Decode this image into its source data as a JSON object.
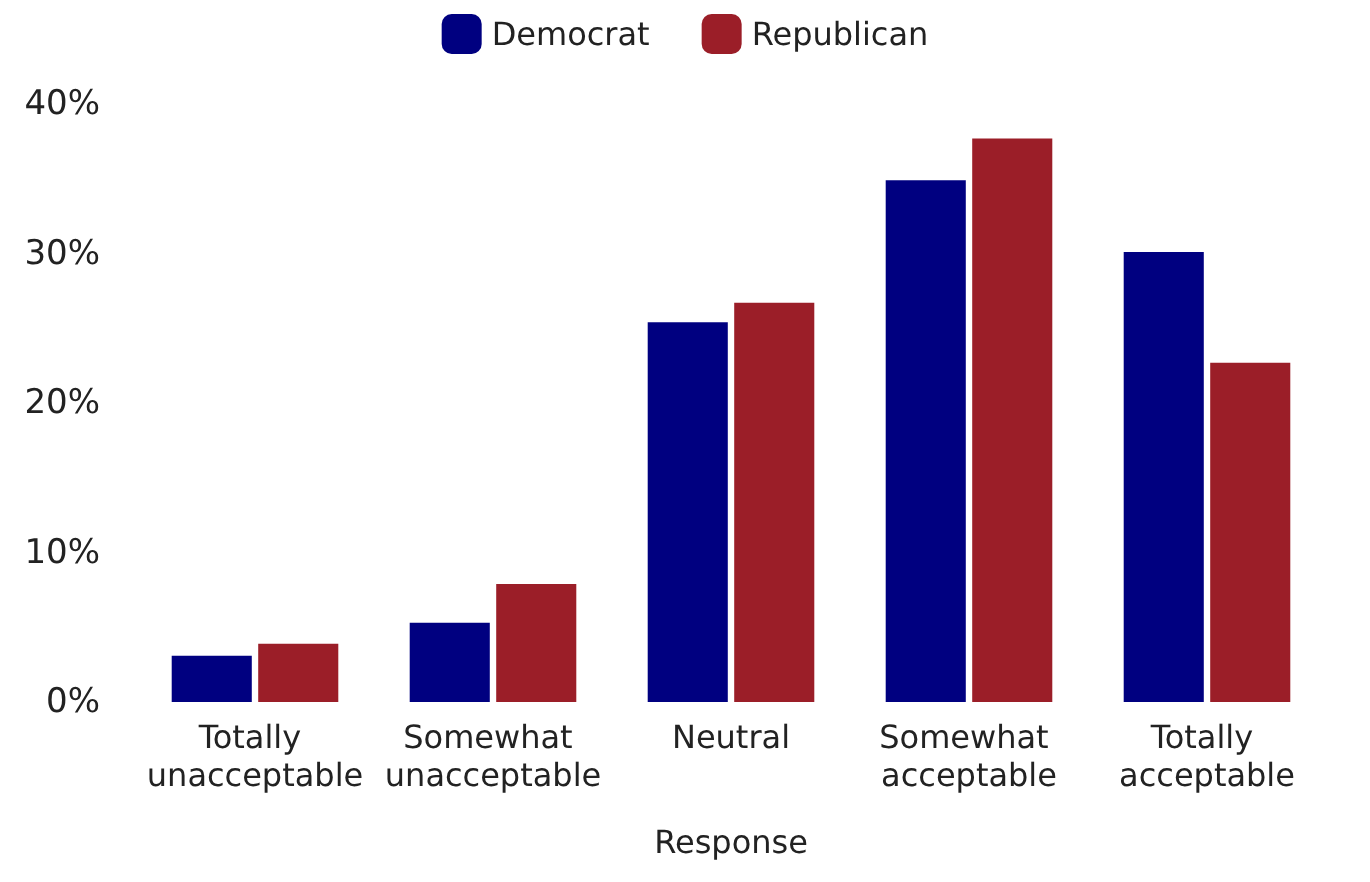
{
  "chart_data": {
    "type": "bar",
    "xlabel": "Response",
    "categories": [
      "Totally unacceptable",
      "Somewhat unacceptable",
      "Neutral",
      "Somewhat acceptable",
      "Totally acceptable"
    ],
    "series": [
      {
        "name": "Democrat",
        "color": "#000080",
        "values": [
          3.1,
          5.3,
          25.4,
          34.9,
          30.1
        ]
      },
      {
        "name": "Republican",
        "color": "#9b1e28",
        "values": [
          3.9,
          7.9,
          26.7,
          37.7,
          22.7
        ]
      }
    ],
    "ylim": [
      0,
      40
    ],
    "yticks": [
      {
        "value": 0,
        "label": "0%"
      },
      {
        "value": 10,
        "label": "10%"
      },
      {
        "value": 20,
        "label": "20%"
      },
      {
        "value": 30,
        "label": "30%"
      },
      {
        "value": 40,
        "label": "40%"
      }
    ],
    "grid": false,
    "legend": "top"
  }
}
